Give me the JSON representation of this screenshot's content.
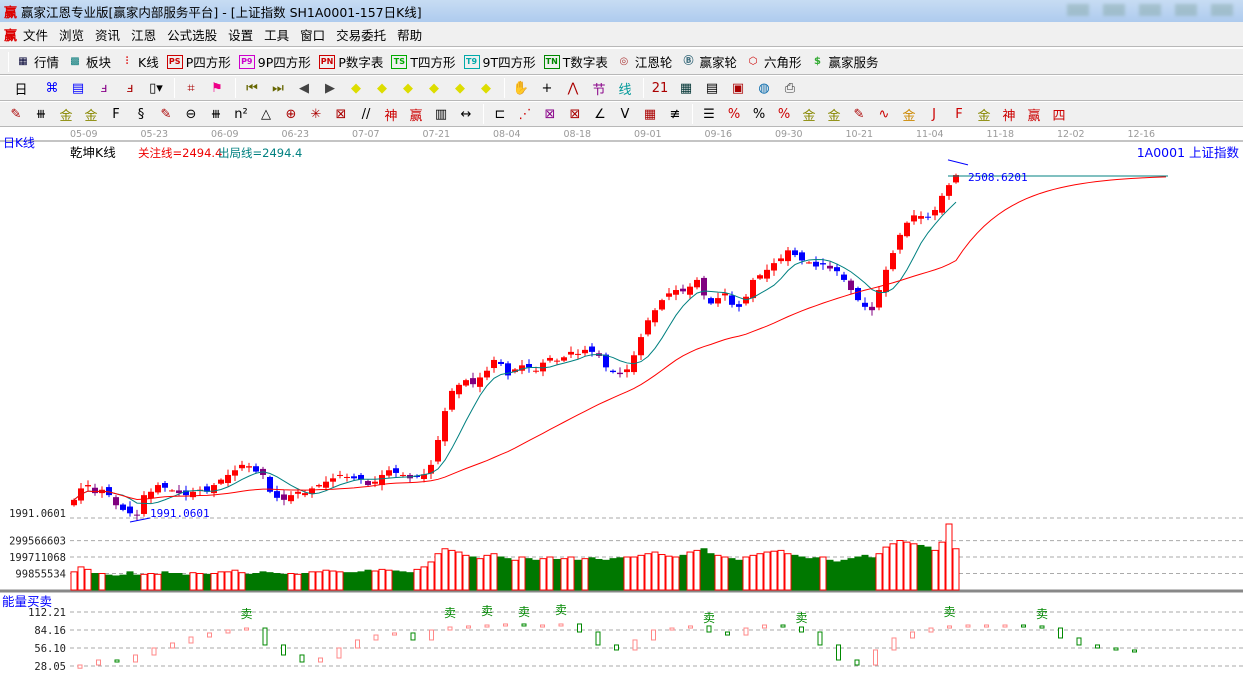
{
  "window": {
    "title": "赢家江恩专业版[赢家内部服务平台] - [上证指数  SH1A0001-157日K线]",
    "logo": "赢"
  },
  "menu": [
    "文件",
    "浏览",
    "资讯",
    "江恩",
    "公式选股",
    "设置",
    "工具",
    "窗口",
    "交易委托",
    "帮助"
  ],
  "toolbar1": [
    {
      "icon": "table-icon",
      "glyph": "▦",
      "label": "行情",
      "color": "#003"
    },
    {
      "icon": "blocks-icon",
      "glyph": "▩",
      "label": "板块",
      "color": "#077"
    },
    {
      "icon": "candles-icon",
      "glyph": "⫶",
      "label": "K线",
      "color": "#d00"
    },
    {
      "icon": "ps-icon",
      "glyph": "PS",
      "label": "P四方形",
      "color": "#c00",
      "box": true
    },
    {
      "icon": "p9-icon",
      "glyph": "P9",
      "label": "9P四方形",
      "color": "#c0c",
      "box": true
    },
    {
      "icon": "pn-icon",
      "glyph": "PN",
      "label": "P数字表",
      "color": "#c00",
      "box": true
    },
    {
      "icon": "ts-icon",
      "glyph": "TS",
      "label": "T四方形",
      "color": "#0a0",
      "box": true
    },
    {
      "icon": "t9-icon",
      "glyph": "T9",
      "label": "9T四方形",
      "color": "#0aa",
      "box": true
    },
    {
      "icon": "tn-icon",
      "glyph": "TN",
      "label": "T数字表",
      "color": "#080",
      "box": true
    },
    {
      "icon": "gann-wheel-icon",
      "glyph": "◎",
      "label": "江恩轮",
      "color": "#a33"
    },
    {
      "icon": "big-wheel-icon",
      "glyph": "Ⓑ",
      "label": "赢家轮",
      "color": "#367"
    },
    {
      "icon": "hexagon-icon",
      "glyph": "⬡",
      "label": "六角形",
      "color": "#c00"
    },
    {
      "icon": "dollar-icon",
      "glyph": "$",
      "label": "赢家服务",
      "color": "#3a3"
    }
  ],
  "toolbar2": {
    "period": "日",
    "icons": [
      {
        "name": "chart-type-icon",
        "g": "⌘",
        "c": "#00f"
      },
      {
        "name": "notepad-icon",
        "g": "▤",
        "c": "#00f"
      },
      {
        "name": "line3-icon",
        "g": "ⅎ",
        "c": "#808"
      },
      {
        "name": "line9-icon",
        "g": "ⅎ",
        "c": "#a00"
      },
      {
        "name": "candle-select-icon",
        "g": "▯▾",
        "c": "#000"
      },
      {
        "name": "pattern-icon",
        "g": "⌗",
        "c": "#a00"
      },
      {
        "name": "flag-icon",
        "g": "⚑",
        "c": "#e08"
      },
      {
        "name": "first-icon",
        "g": "⏮",
        "c": "#660"
      },
      {
        "name": "last-icon",
        "g": "⏭",
        "c": "#660"
      },
      {
        "name": "left-icon",
        "g": "◀",
        "c": "#444"
      },
      {
        "name": "right-icon",
        "g": "▶",
        "c": "#444"
      },
      {
        "name": "diamond-left-icon",
        "g": "◆",
        "c": "#dd0"
      },
      {
        "name": "diamond-right-icon",
        "g": "◆",
        "c": "#dd0"
      },
      {
        "name": "diamond-h-icon",
        "g": "◆",
        "c": "#dd0"
      },
      {
        "name": "diamond-x-icon",
        "g": "◆",
        "c": "#dd0"
      },
      {
        "name": "diamond-y-icon",
        "g": "◆",
        "c": "#dd0"
      },
      {
        "name": "diamond-all-icon",
        "g": "◆",
        "c": "#dd0"
      },
      {
        "name": "hand-icon",
        "g": "✋",
        "c": "#333"
      },
      {
        "name": "crosshair-icon",
        "g": "+",
        "c": "#000"
      },
      {
        "name": "zigzag-icon",
        "g": "⋀",
        "c": "#a00"
      },
      {
        "name": "jie-icon",
        "g": "节",
        "c": "#808"
      },
      {
        "name": "xian-icon",
        "g": "线",
        "c": "#099"
      },
      {
        "name": "calendar-icon",
        "g": "21",
        "c": "#a00"
      },
      {
        "name": "calculator-icon",
        "g": "▦",
        "c": "#033"
      },
      {
        "name": "report-icon",
        "g": "▤",
        "c": "#000"
      },
      {
        "name": "save-icon",
        "g": "▣",
        "c": "#a00"
      },
      {
        "name": "network-icon",
        "g": "◍",
        "c": "#06a"
      },
      {
        "name": "print-icon",
        "g": "⎙",
        "c": "#333"
      }
    ]
  },
  "toolbar3": [
    {
      "name": "pen-icon",
      "g": "✎",
      "c": "#a00"
    },
    {
      "name": "lines-icon",
      "g": "⧻",
      "c": "#000"
    },
    {
      "name": "gold1-icon",
      "g": "金",
      "c": "#880"
    },
    {
      "name": "gold2-icon",
      "g": "金",
      "c": "#880"
    },
    {
      "name": "f-icon",
      "g": "F",
      "c": "#000"
    },
    {
      "name": "spiral-icon",
      "g": "§",
      "c": "#000"
    },
    {
      "name": "pen2-icon",
      "g": "✎",
      "c": "#a00"
    },
    {
      "name": "circle-icon",
      "g": "⊖",
      "c": "#000"
    },
    {
      "name": "hash-icon",
      "g": "⧻",
      "c": "#000"
    },
    {
      "name": "n2-icon",
      "g": "n²",
      "c": "#000"
    },
    {
      "name": "triangle-icon",
      "g": "△",
      "c": "#000"
    },
    {
      "name": "target-icon",
      "g": "⊕",
      "c": "#a00"
    },
    {
      "name": "radar-icon",
      "g": "✳",
      "c": "#a00"
    },
    {
      "name": "square-target-icon",
      "g": "⊠",
      "c": "#a00"
    },
    {
      "name": "slash-icon",
      "g": "//",
      "c": "#000"
    },
    {
      "name": "shen-icon",
      "g": "神",
      "c": "#c00"
    },
    {
      "name": "ying-icon",
      "g": "赢",
      "c": "#c00"
    },
    {
      "name": "grid-icon",
      "g": "▥",
      "c": "#000"
    },
    {
      "name": "width-icon",
      "g": "↔",
      "c": "#000"
    },
    {
      "name": "box-icon",
      "g": "⊏",
      "c": "#000"
    },
    {
      "name": "fan-icon",
      "g": "⋰",
      "c": "#c00"
    },
    {
      "name": "fan-box-icon",
      "g": "⊠",
      "c": "#808"
    },
    {
      "name": "fan-box2-icon",
      "g": "⊠",
      "c": "#a00"
    },
    {
      "name": "angle-icon",
      "g": "∠",
      "c": "#000"
    },
    {
      "name": "v-icon",
      "g": "V",
      "c": "#000"
    },
    {
      "name": "grid2-icon",
      "g": "▦",
      "c": "#a00"
    },
    {
      "name": "parallel-icon",
      "g": "≢",
      "c": "#000"
    },
    {
      "name": "ruler-icon",
      "g": "☰",
      "c": "#000"
    },
    {
      "name": "pct-line-icon",
      "g": "%",
      "c": "#c00"
    },
    {
      "name": "percent-icon",
      "g": "%",
      "c": "#000"
    },
    {
      "name": "pct-lines-icon",
      "g": "%",
      "c": "#c00"
    },
    {
      "name": "gold-circle-icon",
      "g": "金",
      "c": "#880"
    },
    {
      "name": "gold-lines-icon",
      "g": "金",
      "c": "#880"
    },
    {
      "name": "pen-lines-icon",
      "g": "✎",
      "c": "#a00"
    },
    {
      "name": "wave-icon",
      "g": "∿",
      "c": "#c00"
    },
    {
      "name": "gold-box-icon",
      "g": "金",
      "c": "#c80"
    },
    {
      "name": "j-angle-icon",
      "g": "J",
      "c": "#c00"
    },
    {
      "name": "f-angle-icon",
      "g": "F",
      "c": "#c00"
    },
    {
      "name": "gold-angle-icon",
      "g": "金",
      "c": "#880"
    },
    {
      "name": "shen-angle-icon",
      "g": "神",
      "c": "#c00"
    },
    {
      "name": "ying-angle-icon",
      "g": "赢",
      "c": "#c00"
    },
    {
      "name": "si-angle-icon",
      "g": "四",
      "c": "#c00"
    }
  ],
  "chart": {
    "period_label": "日K线",
    "indicator_name": "乾坤K线",
    "attention_line": "关注线=2494.4",
    "exit_line": "出局线=2494.4",
    "symbol": "1A0001  上证指数",
    "dates": [
      "05-09",
      "05-23",
      "06-09",
      "06-23",
      "07-07",
      "07-21",
      "08-04",
      "08-18",
      "09-01",
      "09-16",
      "09-30",
      "10-21",
      "11-04",
      "11-18",
      "12-02",
      "12-16"
    ],
    "high_label": "2508.6201",
    "low_label": "1991.0601",
    "low_axis": "1991.0601",
    "colors": {
      "up": "#ff0000",
      "down": "#0000ff",
      "ma_short": "#008080",
      "ma_long": "#ff0000",
      "vol_up": "#ff0000",
      "vol_down": "#007800"
    }
  },
  "chart_data": [
    {
      "type": "candlestick",
      "title": "乾坤K线",
      "ylim": [
        1991.06,
        2508.62
      ],
      "close": [
        2018,
        2035,
        2040,
        2028,
        2033,
        2025,
        2010,
        2003,
        1998,
        1995,
        2025,
        2030,
        2040,
        2036,
        2032,
        2028,
        2025,
        2030,
        2033,
        2030,
        2040,
        2048,
        2055,
        2062,
        2070,
        2068,
        2060,
        2055,
        2030,
        2021,
        2018,
        2025,
        2030,
        2028,
        2035,
        2040,
        2045,
        2050,
        2055,
        2052,
        2050,
        2048,
        2040,
        2045,
        2055,
        2062,
        2058,
        2055,
        2050,
        2052,
        2056,
        2070,
        2107,
        2150,
        2180,
        2189,
        2196,
        2190,
        2200,
        2210,
        2226,
        2220,
        2203,
        2212,
        2218,
        2215,
        2210,
        2222,
        2229,
        2225,
        2230,
        2238,
        2235,
        2241,
        2238,
        2232,
        2215,
        2208,
        2205,
        2212,
        2233,
        2260,
        2285,
        2300,
        2315,
        2325,
        2330,
        2328,
        2335,
        2345,
        2322,
        2310,
        2318,
        2325,
        2308,
        2305,
        2320,
        2345,
        2352,
        2360,
        2370,
        2377,
        2389,
        2382,
        2374,
        2371,
        2365,
        2368,
        2362,
        2358,
        2345,
        2330,
        2315,
        2305,
        2300,
        2330,
        2360,
        2385,
        2412,
        2430,
        2441,
        2440,
        2438,
        2449,
        2470,
        2486,
        2501
      ]
    },
    {
      "type": "bar",
      "title": "volume",
      "yticks": [
        "99855534",
        "199711068",
        "299566603"
      ],
      "values_millions": [
        110,
        140,
        125,
        100,
        100,
        90,
        85,
        90,
        110,
        90,
        95,
        100,
        95,
        110,
        100,
        100,
        90,
        105,
        100,
        95,
        100,
        110,
        110,
        120,
        105,
        95,
        100,
        110,
        105,
        100,
        95,
        100,
        95,
        100,
        110,
        110,
        120,
        115,
        110,
        105,
        105,
        110,
        120,
        115,
        125,
        120,
        115,
        110,
        105,
        125,
        140,
        170,
        220,
        250,
        240,
        230,
        210,
        200,
        190,
        210,
        220,
        200,
        190,
        180,
        200,
        190,
        180,
        190,
        200,
        185,
        190,
        200,
        180,
        190,
        195,
        185,
        180,
        190,
        195,
        200,
        200,
        210,
        220,
        230,
        215,
        205,
        200,
        210,
        230,
        240,
        250,
        220,
        210,
        200,
        190,
        180,
        200,
        210,
        220,
        230,
        235,
        240,
        220,
        210,
        200,
        190,
        195,
        200,
        180,
        170,
        180,
        190,
        200,
        210,
        195,
        220,
        260,
        280,
        300,
        290,
        280,
        270,
        260,
        240,
        290,
        400,
        250
      ]
    },
    {
      "type": "bar",
      "title": "能量买卖",
      "ylim": [
        28.05,
        112.21
      ],
      "yticks": [
        "28.05",
        "56.10",
        "84.16",
        "112.21"
      ],
      "values": [
        29.6,
        37.4,
        34.3,
        45.2,
        56.1,
        63.9,
        73.2,
        79.5,
        84.1,
        87.2,
        60.8,
        45.2,
        34.3,
        40.5,
        56.1,
        68.6,
        76.3,
        79.5,
        68.6,
        84.1,
        88.8,
        90.4,
        91.9,
        93.5,
        90.4,
        91.9,
        93.5,
        81.0,
        60.8,
        53.0,
        68.6,
        84.1,
        87.2,
        90.4,
        81.0,
        76.3,
        87.2,
        91.9,
        88.8,
        81.0,
        60.8,
        37.4,
        29.6,
        53.0,
        71.7,
        81.0,
        87.2,
        90.4,
        91.9,
        91.9,
        91.9,
        90.4,
        87.2,
        71.7,
        60.8,
        56.1,
        53.0,
        51.4
      ],
      "sell_label": "卖",
      "sell_at": [
        9,
        20,
        22,
        24,
        26,
        34,
        39,
        47,
        52
      ]
    }
  ]
}
